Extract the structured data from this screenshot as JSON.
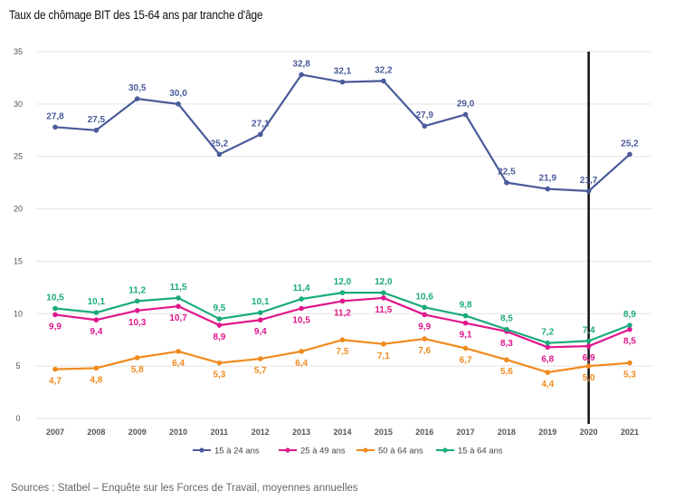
{
  "title": "Taux de chômage BIT des 15-64 ans par tranche d'âge",
  "source": "Sources : Statbel – Enquête sur les Forces de Travail, moyennes annuelles",
  "chart_data": {
    "type": "line",
    "x": [
      "2007",
      "2008",
      "2009",
      "2010",
      "2011",
      "2012",
      "2013",
      "2014",
      "2015",
      "2016",
      "2017",
      "2018",
      "2019",
      "2020",
      "2021"
    ],
    "ylim": [
      0,
      35
    ],
    "yticks": [
      0,
      5,
      10,
      15,
      20,
      25,
      30,
      35
    ],
    "grid": true,
    "legend_position": "bottom",
    "vertical_marker_at": "2020",
    "series": [
      {
        "name": "15 à 24 ans",
        "color": "#4a5a9a",
        "values": [
          27.8,
          27.5,
          30.5,
          30.0,
          25.2,
          27.1,
          32.8,
          32.1,
          32.2,
          27.9,
          29.0,
          22.5,
          21.9,
          21.7,
          25.2
        ],
        "labels": [
          "27,8",
          "27,5",
          "30,5",
          "30,0",
          "25,2",
          "27,1",
          "32,8",
          "32,1",
          "32,2",
          "27,9",
          "29,0",
          "22,5",
          "21,9",
          "21,7",
          "25,2"
        ],
        "label_pos": "above"
      },
      {
        "name": "25 à 49 ans",
        "color": "#e0168c",
        "values": [
          9.9,
          9.4,
          10.3,
          10.7,
          8.9,
          9.4,
          10.5,
          11.2,
          11.5,
          9.9,
          9.1,
          8.3,
          6.8,
          6.9,
          8.5
        ],
        "labels": [
          "9,9",
          "9,4",
          "10,3",
          "10,7",
          "8,9",
          "9,4",
          "10,5",
          "11,2",
          "11,5",
          "9,9",
          "9,1",
          "8,3",
          "6,8",
          "6,9",
          "8,5"
        ],
        "label_pos": "below"
      },
      {
        "name": "50 à 64 ans",
        "color": "#f08a1c",
        "values": [
          4.7,
          4.8,
          5.8,
          6.4,
          5.3,
          5.7,
          6.4,
          7.5,
          7.1,
          7.6,
          6.7,
          5.6,
          4.4,
          5.0,
          5.3
        ],
        "labels": [
          "4,7",
          "4,8",
          "5,8",
          "6,4",
          "5,3",
          "5,7",
          "6,4",
          "7,5",
          "7,1",
          "7,6",
          "6,7",
          "5,6",
          "4,4",
          "5,0",
          "5,3"
        ],
        "label_pos": "below"
      },
      {
        "name": "15 à 64 ans",
        "color": "#1aaa7e",
        "values": [
          10.5,
          10.1,
          11.2,
          11.5,
          9.5,
          10.1,
          11.4,
          12.0,
          12.0,
          10.6,
          9.8,
          8.5,
          7.2,
          7.4,
          8.9
        ],
        "labels": [
          "10,5",
          "10,1",
          "11,2",
          "11,5",
          "9,5",
          "10,1",
          "11,4",
          "12,0",
          "12,0",
          "10,6",
          "9,8",
          "8,5",
          "7,2",
          "7,4",
          "8,9"
        ],
        "label_pos": "above"
      }
    ]
  }
}
